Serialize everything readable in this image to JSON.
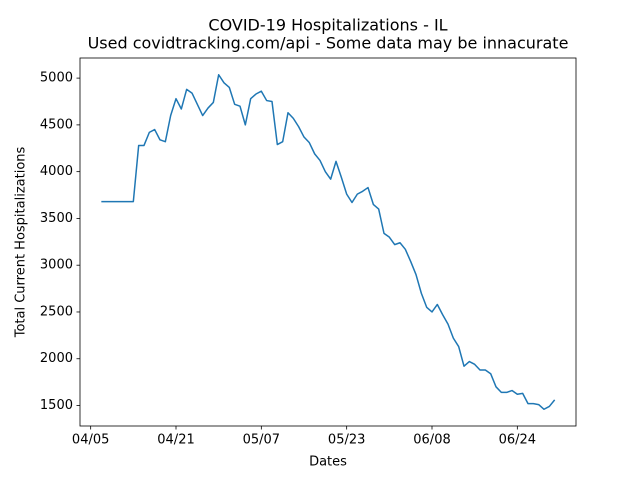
{
  "chart_data": {
    "type": "line",
    "title": "COVID-19 Hospitalizations - IL",
    "subtitle": "Used covidtracking.com/api - Some data may be innacurate",
    "x_label": "Dates",
    "y_label": "Total Current Hospitalizations",
    "x": [
      "04/07",
      "04/08",
      "04/09",
      "04/10",
      "04/11",
      "04/12",
      "04/13",
      "04/14",
      "04/15",
      "04/16",
      "04/17",
      "04/18",
      "04/19",
      "04/20",
      "04/21",
      "04/22",
      "04/23",
      "04/24",
      "04/25",
      "04/26",
      "04/27",
      "04/28",
      "04/29",
      "04/30",
      "05/01",
      "05/02",
      "05/03",
      "05/04",
      "05/05",
      "05/06",
      "05/07",
      "05/08",
      "05/09",
      "05/10",
      "05/11",
      "05/12",
      "05/13",
      "05/14",
      "05/15",
      "05/16",
      "05/17",
      "05/18",
      "05/19",
      "05/20",
      "05/21",
      "05/22",
      "05/23",
      "05/24",
      "05/25",
      "05/26",
      "05/27",
      "05/28",
      "05/29",
      "05/30",
      "05/31",
      "06/01",
      "06/02",
      "06/03",
      "06/04",
      "06/05",
      "06/06",
      "06/07",
      "06/08",
      "06/09",
      "06/10",
      "06/11",
      "06/12",
      "06/13",
      "06/14",
      "06/15",
      "06/16",
      "06/17",
      "06/18",
      "06/19",
      "06/20",
      "06/21",
      "06/22",
      "06/23",
      "06/24",
      "06/25",
      "06/26",
      "06/27",
      "06/28",
      "06/29",
      "06/30",
      "07/01"
    ],
    "series": [
      {
        "color": "#1f77b4",
        "values": [
          3680,
          3680,
          3680,
          3680,
          3680,
          3680,
          3680,
          4280,
          4280,
          4420,
          4450,
          4340,
          4320,
          4600,
          4780,
          4670,
          4880,
          4840,
          4720,
          4600,
          4680,
          4740,
          5036,
          4950,
          4900,
          4720,
          4700,
          4500,
          4780,
          4830,
          4860,
          4760,
          4750,
          4290,
          4320,
          4630,
          4570,
          4480,
          4370,
          4310,
          4190,
          4120,
          4000,
          3920,
          4110,
          3940,
          3760,
          3670,
          3760,
          3790,
          3830,
          3650,
          3600,
          3340,
          3300,
          3220,
          3240,
          3170,
          3040,
          2900,
          2700,
          2550,
          2500,
          2580,
          2470,
          2370,
          2220,
          2130,
          1920,
          1970,
          1940,
          1880,
          1880,
          1840,
          1700,
          1640,
          1640,
          1660,
          1620,
          1630,
          1520,
          1520,
          1510,
          1460,
          1490,
          1560
        ]
      }
    ],
    "xlim": [
      "04/03",
      "07/05"
    ],
    "xticks": [
      "04/05",
      "04/21",
      "05/07",
      "05/23",
      "06/08",
      "06/24"
    ],
    "ylim": [
      1281,
      5215
    ],
    "yticks": [
      1500,
      2000,
      2500,
      3000,
      3500,
      4000,
      4500,
      5000
    ],
    "grid": false
  }
}
